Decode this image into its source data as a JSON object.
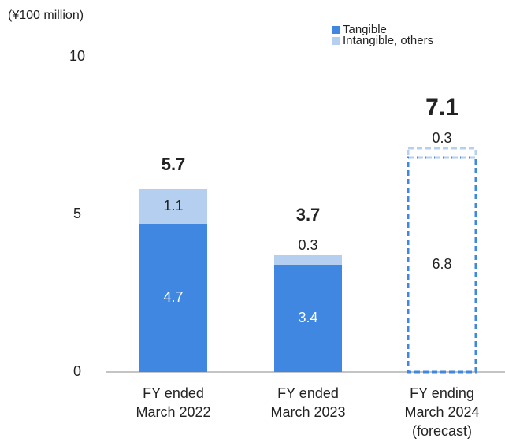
{
  "chart_data": {
    "type": "stacked_bar",
    "y_axis_label": "(¥100 million)",
    "categories": [
      "FY ended\nMarch 2022",
      "FY ended\nMarch 2023",
      "FY ending\nMarch 2024\n(forecast)"
    ],
    "series": [
      {
        "name": "Tangible",
        "color": "#3f87e0",
        "values": [
          4.7,
          3.4,
          6.8
        ]
      },
      {
        "name": "Intangible, others",
        "color": "#b4cff0",
        "values": [
          1.1,
          0.3,
          0.3
        ]
      }
    ],
    "totals": [
      5.7,
      3.7,
      7.1
    ],
    "dashed": [
      false,
      false,
      true
    ],
    "ylim": [
      0,
      10
    ],
    "yticks": [
      0,
      5,
      10
    ],
    "grid": false,
    "legend": "top-right"
  }
}
